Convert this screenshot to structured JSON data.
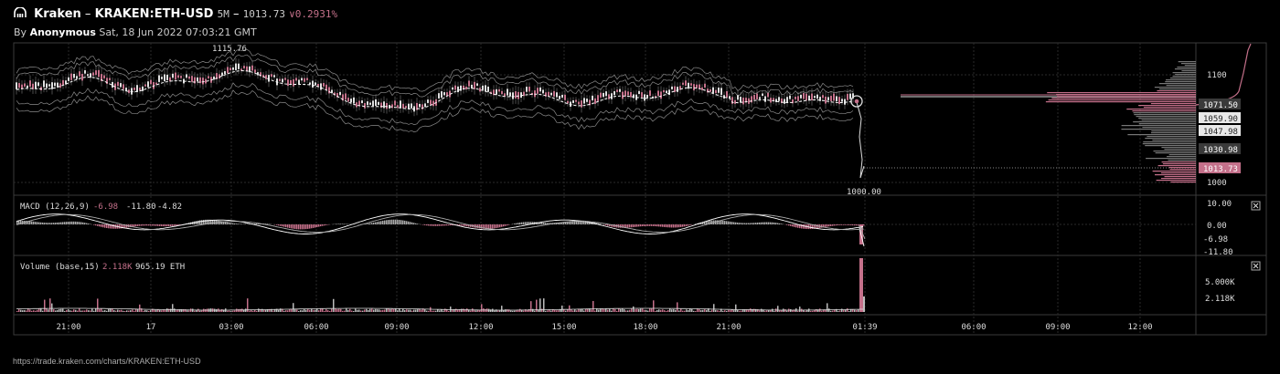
{
  "header": {
    "brand": "Kraken",
    "separator": "–",
    "symbol": "KRAKEN:ETH-USD",
    "interval": "5M",
    "dash": "–",
    "price": "1013.73",
    "change": "∨0.2931%",
    "by_prefix": "By",
    "author": "Anonymous",
    "timestamp": "Sat, 18 Jun 2022 07:03:21 GMT"
  },
  "price_pane": {
    "high_label": "1115.76",
    "low_label": "1000.00",
    "axis_ticks": [
      "1100",
      "1000"
    ],
    "price_tags": [
      "1071.50",
      "1059.90",
      "1047.98",
      "1030.98",
      "1013.73"
    ]
  },
  "macd_pane": {
    "title": "MACD (12,26,9)",
    "value1": "-6.98",
    "value2": "-11.80",
    "value3": "-4.82",
    "axis_ticks": [
      "10.00",
      "0.00",
      "-6.98",
      "-11.80"
    ],
    "close_icon": "close-icon"
  },
  "volume_pane": {
    "title": "Volume (base,15)",
    "value1": "2.118K",
    "value2": "965.19 ETH",
    "axis_ticks": [
      "5.000K",
      "2.118K"
    ],
    "close_icon": "close-icon"
  },
  "time_axis": {
    "labels": [
      "21:00",
      "17",
      "03:00",
      "06:00",
      "09:00",
      "12:00",
      "15:00",
      "18:00",
      "21:00",
      "01:39",
      "06:00",
      "09:00",
      "12:00"
    ]
  },
  "footer": {
    "url_text": "https://trade.kraken.com/charts/KRAKEN:ETH-USD"
  },
  "colors": {
    "accent_pink": "#c4708a",
    "background": "#000000",
    "grid": "#333333",
    "tag_gray": "#3a3a3a",
    "tag_light": "#e8e8e8"
  }
}
